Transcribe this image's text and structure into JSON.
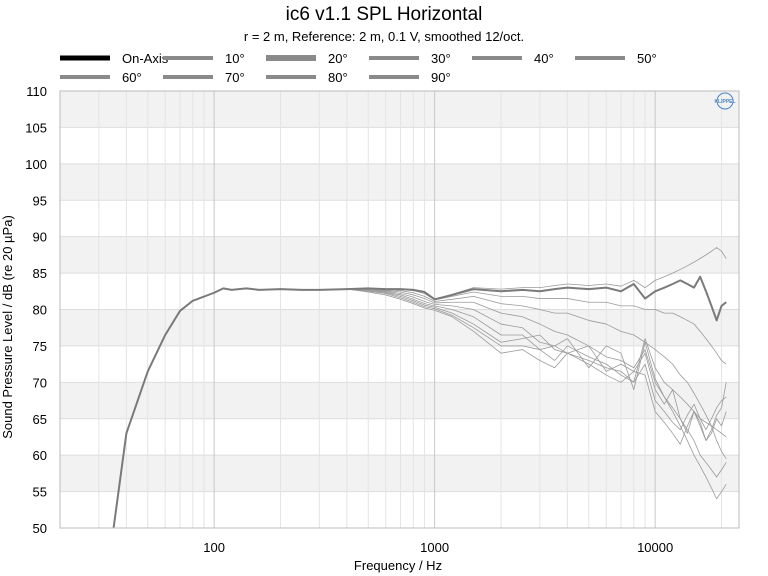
{
  "chart_data": {
    "type": "line",
    "title": "ic6 v1.1 SPL Horizontal",
    "subtitle": "r = 2 m,  Reference: 2 m, 0.1 V, smoothed 12/oct.",
    "xlabel": "Frequency / Hz",
    "ylabel": "Sound Pressure Level / dB (re 20 µPa)",
    "x_scale": "log",
    "xlim": [
      20,
      24000
    ],
    "ylim": [
      50,
      110
    ],
    "x_ticks": [
      100,
      1000,
      10000
    ],
    "x_tick_labels": [
      "100",
      "1000",
      "10000"
    ],
    "y_ticks": [
      50,
      55,
      60,
      65,
      70,
      75,
      80,
      85,
      90,
      95,
      100,
      105,
      110
    ],
    "y_tick_labels": [
      "50",
      "55",
      "60",
      "65",
      "70",
      "75",
      "80",
      "85",
      "90",
      "95",
      "100",
      "105",
      "110"
    ],
    "grid": true,
    "legend_position": "top",
    "logo_text": "KLIPPEL",
    "colors": {
      "on_axis": "#000000",
      "off_axis_legend": "#8a8a8a",
      "drawn_on_axis": "#7a7a7a",
      "drawn_off_axis": "#9a9a9a",
      "band": "#f2f2f2",
      "grid": "#dddddd",
      "logo": "#4a84c4"
    },
    "x": [
      35,
      40,
      50,
      60,
      70,
      80,
      100,
      110,
      120,
      140,
      160,
      200,
      250,
      300,
      400,
      500,
      600,
      700,
      800,
      900,
      1000,
      1200,
      1500,
      2000,
      2500,
      3000,
      3500,
      4000,
      5000,
      6000,
      7000,
      8000,
      9000,
      10000,
      11000,
      12000,
      13000,
      14000,
      15000,
      16000,
      17000,
      18000,
      19000,
      20000,
      21000
    ],
    "series": [
      {
        "name": "On-Axis",
        "values": [
          50.0,
          63.0,
          71.5,
          76.5,
          79.8,
          81.2,
          82.3,
          82.9,
          82.7,
          82.9,
          82.7,
          82.8,
          82.7,
          82.7,
          82.8,
          82.9,
          82.8,
          82.8,
          82.7,
          82.4,
          81.4,
          82.0,
          82.8,
          82.5,
          82.7,
          82.5,
          82.8,
          83.0,
          82.8,
          83.0,
          82.5,
          83.5,
          81.5,
          82.5,
          83.0,
          83.5,
          84.0,
          83.5,
          83.0,
          84.5,
          82.5,
          80.5,
          78.5,
          80.5,
          81.0
        ]
      },
      {
        "name": "10°",
        "values": [
          50.0,
          63.0,
          71.5,
          76.5,
          79.8,
          81.2,
          82.3,
          82.9,
          82.7,
          82.9,
          82.7,
          82.8,
          82.7,
          82.7,
          82.8,
          82.9,
          82.8,
          82.8,
          82.7,
          82.4,
          81.4,
          82.1,
          83.0,
          82.8,
          83.0,
          83.0,
          83.3,
          83.5,
          83.3,
          83.5,
          83.2,
          84.0,
          83.0,
          84.0,
          84.5,
          85.0,
          85.5,
          86.0,
          86.5,
          87.0,
          87.5,
          88.0,
          88.5,
          88.0,
          87.0
        ]
      },
      {
        "name": "20°",
        "values": [
          50.0,
          63.0,
          71.5,
          76.5,
          79.8,
          81.2,
          82.3,
          82.9,
          82.7,
          82.9,
          82.7,
          82.8,
          82.7,
          82.7,
          82.8,
          82.9,
          82.8,
          82.8,
          82.6,
          82.2,
          81.3,
          81.8,
          82.4,
          81.8,
          81.8,
          81.5,
          81.5,
          81.5,
          81.0,
          81.0,
          80.5,
          80.5,
          80.0,
          80.0,
          79.5,
          79.5,
          79.0,
          78.5,
          78.0,
          77.0,
          76.0,
          75.0,
          74.0,
          73.0,
          72.5
        ]
      },
      {
        "name": "30°",
        "values": [
          50.0,
          63.0,
          71.5,
          76.5,
          79.8,
          81.2,
          82.3,
          82.9,
          82.7,
          82.9,
          82.7,
          82.8,
          82.7,
          82.7,
          82.8,
          82.9,
          82.7,
          82.6,
          82.3,
          81.8,
          81.1,
          81.4,
          81.8,
          80.8,
          80.5,
          80.0,
          79.5,
          79.5,
          78.5,
          78.0,
          77.0,
          76.5,
          75.5,
          74.5,
          73.5,
          72.5,
          71.0,
          70.0,
          68.5,
          67.0,
          65.5,
          64.0,
          62.0,
          60.5,
          59.5
        ]
      },
      {
        "name": "40°",
        "values": [
          50.0,
          63.0,
          71.5,
          76.5,
          79.8,
          81.2,
          82.3,
          82.9,
          82.7,
          82.9,
          82.7,
          82.8,
          82.7,
          82.7,
          82.8,
          82.8,
          82.6,
          82.4,
          82.0,
          81.5,
          80.9,
          81.0,
          81.0,
          79.5,
          79.0,
          78.0,
          77.0,
          76.5,
          75.0,
          73.5,
          73.0,
          72.0,
          74.5,
          70.0,
          68.0,
          66.0,
          64.0,
          62.0,
          60.0,
          58.5,
          57.0,
          55.5,
          54.0,
          55.0,
          56.0
        ]
      },
      {
        "name": "50°",
        "values": [
          50.0,
          63.0,
          71.5,
          76.5,
          79.8,
          81.2,
          82.3,
          82.9,
          82.7,
          82.9,
          82.7,
          82.8,
          82.7,
          82.7,
          82.8,
          82.8,
          82.5,
          82.2,
          81.7,
          81.1,
          80.7,
          80.5,
          80.0,
          78.0,
          77.5,
          75.5,
          75.0,
          74.0,
          73.0,
          72.0,
          71.5,
          70.0,
          76.0,
          72.0,
          70.0,
          69.0,
          68.0,
          67.0,
          66.0,
          65.0,
          64.5,
          64.0,
          63.5,
          63.0,
          62.5
        ]
      },
      {
        "name": "60°",
        "values": [
          50.0,
          63.0,
          71.5,
          76.5,
          79.8,
          81.2,
          82.3,
          82.9,
          82.7,
          82.9,
          82.7,
          82.8,
          82.7,
          82.7,
          82.8,
          82.7,
          82.4,
          82.0,
          81.4,
          80.8,
          80.5,
          80.0,
          79.0,
          76.5,
          76.5,
          74.5,
          75.0,
          76.0,
          72.0,
          75.0,
          74.0,
          69.0,
          75.5,
          70.5,
          68.0,
          66.5,
          65.0,
          63.5,
          62.0,
          60.0,
          59.0,
          58.0,
          57.0,
          58.0,
          59.0
        ]
      },
      {
        "name": "70°",
        "values": [
          50.0,
          63.0,
          71.5,
          76.5,
          79.8,
          81.2,
          82.3,
          82.9,
          82.7,
          82.9,
          82.7,
          82.8,
          82.7,
          82.7,
          82.8,
          82.6,
          82.3,
          81.8,
          81.2,
          80.6,
          80.3,
          79.5,
          78.0,
          75.5,
          76.0,
          76.5,
          74.5,
          74.0,
          75.0,
          71.5,
          72.5,
          71.5,
          74.0,
          69.0,
          67.0,
          69.0,
          65.0,
          63.0,
          66.0,
          64.0,
          62.0,
          63.0,
          65.0,
          64.0,
          66.0
        ]
      },
      {
        "name": "80°",
        "values": [
          50.0,
          63.0,
          71.5,
          76.5,
          79.8,
          81.2,
          82.3,
          82.9,
          82.7,
          82.9,
          82.7,
          82.8,
          82.7,
          82.7,
          82.8,
          82.5,
          82.2,
          81.6,
          81.0,
          80.4,
          80.1,
          79.2,
          77.5,
          75.0,
          75.0,
          74.5,
          73.0,
          75.0,
          73.5,
          72.5,
          71.0,
          70.0,
          72.5,
          67.5,
          66.0,
          64.5,
          63.5,
          65.5,
          67.0,
          65.0,
          63.5,
          65.0,
          66.5,
          67.5,
          68.0
        ]
      },
      {
        "name": "90°",
        "values": [
          50.0,
          63.0,
          71.5,
          76.5,
          79.8,
          81.2,
          82.3,
          82.9,
          82.7,
          82.9,
          82.7,
          82.8,
          82.7,
          82.7,
          82.8,
          82.4,
          82.0,
          81.4,
          80.8,
          80.2,
          79.9,
          79.0,
          77.0,
          74.0,
          74.5,
          73.0,
          72.0,
          74.0,
          72.5,
          71.0,
          70.0,
          71.5,
          71.0,
          66.0,
          64.5,
          63.0,
          61.5,
          64.0,
          66.0,
          64.5,
          62.0,
          63.5,
          65.5,
          66.5,
          70.0
        ]
      }
    ]
  }
}
